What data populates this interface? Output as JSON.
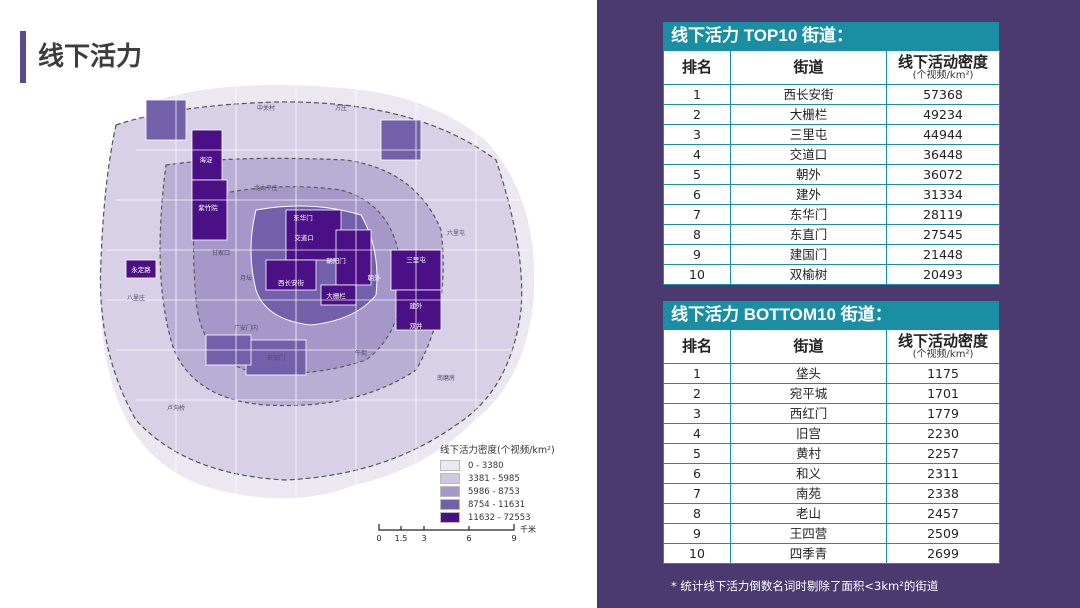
{
  "page": {
    "title": "线下活力"
  },
  "top10": {
    "title": "线下活力 TOP10 街道：",
    "headers": {
      "rank": "排名",
      "street": "街道",
      "density": "线下活动密度",
      "density_unit": "(个视频/km²)"
    },
    "rows": [
      {
        "rank": "1",
        "street": "西长安街",
        "value": "57368"
      },
      {
        "rank": "2",
        "street": "大栅栏",
        "value": "49234"
      },
      {
        "rank": "3",
        "street": "三里屯",
        "value": "44944"
      },
      {
        "rank": "4",
        "street": "交道口",
        "value": "36448"
      },
      {
        "rank": "5",
        "street": "朝外",
        "value": "36072"
      },
      {
        "rank": "6",
        "street": "建外",
        "value": "31334"
      },
      {
        "rank": "7",
        "street": "东华门",
        "value": "28119"
      },
      {
        "rank": "8",
        "street": "东直门",
        "value": "27545"
      },
      {
        "rank": "9",
        "street": "建国门",
        "value": "21448"
      },
      {
        "rank": "10",
        "street": "双榆树",
        "value": "20493"
      }
    ]
  },
  "bottom10": {
    "title": "线下活力 BOTTOM10 街道：",
    "headers": {
      "rank": "排名",
      "street": "街道",
      "density": "线下活动密度",
      "density_unit": "(个视频/km²)"
    },
    "rows": [
      {
        "rank": "1",
        "street": "垡头",
        "value": "1175"
      },
      {
        "rank": "2",
        "street": "宛平城",
        "value": "1701"
      },
      {
        "rank": "3",
        "street": "西红门",
        "value": "1779"
      },
      {
        "rank": "4",
        "street": "旧宫",
        "value": "2230"
      },
      {
        "rank": "5",
        "street": "黄村",
        "value": "2257"
      },
      {
        "rank": "6",
        "street": "和义",
        "value": "2311"
      },
      {
        "rank": "7",
        "street": "南苑",
        "value": "2338"
      },
      {
        "rank": "8",
        "street": "老山",
        "value": "2457"
      },
      {
        "rank": "9",
        "street": "王四营",
        "value": "2509"
      },
      {
        "rank": "10",
        "street": "四季青",
        "value": "2699"
      }
    ]
  },
  "footnote": "* 统计线下活力倒数名词时剔除了面积<3km²的街道",
  "map": {
    "labels": [
      "西长安街",
      "大栅栏",
      "三里屯",
      "交道口",
      "朝外",
      "建外",
      "东华门",
      "东直门",
      "建国门",
      "双榆树",
      "紫竹院",
      "甘家口",
      "月坛",
      "金融街",
      "什刹海",
      "德胜",
      "朝阳门",
      "前门",
      "天坛",
      "双井",
      "劲松",
      "永定路",
      "海淀",
      "中关村",
      "学院路",
      "花园路",
      "北太平庄",
      "展览路",
      "广安门内",
      "牛街",
      "右安门",
      "方庄",
      "燕园",
      "清华园",
      "亚运村",
      "和平街",
      "左家庄",
      "安贞",
      "景山",
      "东四",
      "呼家楼",
      "团结湖",
      "六里屯",
      "麦子店",
      "潘家园",
      "南磨房",
      "太平桥",
      "马家堡",
      "东铁匠营",
      "大红门",
      "八里庄",
      "鲁谷",
      "卢沟桥",
      "宛平城"
    ],
    "legend": {
      "title": "线下活力密度(个视频/km²)",
      "items": [
        {
          "label": "0 - 3380",
          "color": "#ece8f2"
        },
        {
          "label": "3381 - 5985",
          "color": "#cfc6e0"
        },
        {
          "label": "5986 - 8753",
          "color": "#a597c8"
        },
        {
          "label": "8754 - 11631",
          "color": "#7360aa"
        },
        {
          "label": "11632 - 72553",
          "color": "#4b0f86"
        }
      ]
    },
    "scale": {
      "ticks": [
        "0",
        "1.5",
        "3",
        "6",
        "9"
      ],
      "unit": "千米"
    }
  }
}
